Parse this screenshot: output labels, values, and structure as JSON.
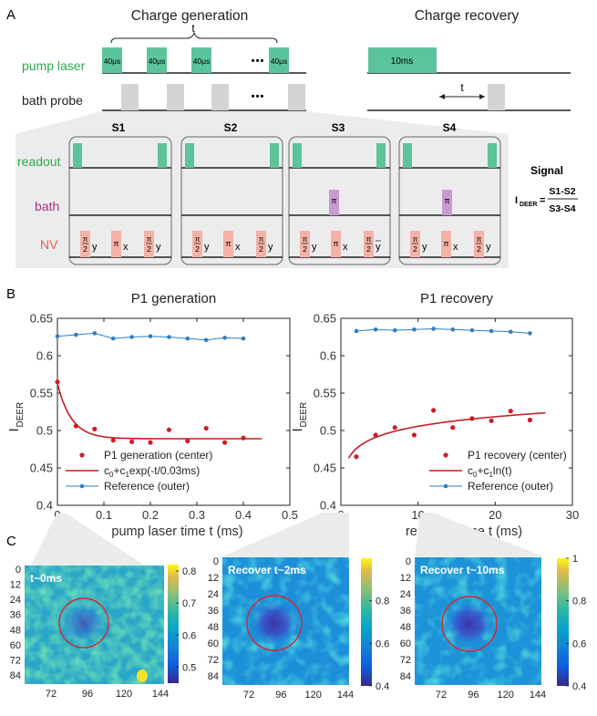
{
  "panel_labels": {
    "a": "A",
    "b": "B",
    "c": "C"
  },
  "section_a": {
    "charge_generation_title": "Charge generation",
    "charge_recovery_title": "Charge recovery",
    "t_label": "t",
    "pump_laser_label": "pump laser",
    "bath_probe_label": "bath probe",
    "pulse_label": "40μs",
    "recovery_pulse_label": "10ms",
    "ellipsis": "• • •",
    "rows": {
      "readout": "readout",
      "bath": "bath",
      "nv": "NV"
    },
    "sequences": [
      "S1",
      "S2",
      "S3",
      "S4"
    ],
    "pi": "π",
    "pi_half": "π",
    "denominator_two": "2",
    "axis_y": "y",
    "axis_x": "x",
    "axis_ybar": "y",
    "signal_title": "Signal",
    "signal_lhs": "I",
    "signal_sub": "DEER",
    "signal_eq": "=",
    "signal_num": "S1-S2",
    "signal_den": "S3-S4",
    "colors": {
      "green": "#5cc49a",
      "pink": "#f4b3a6",
      "purple": "#b58bbd",
      "gray": "#d4d4d4",
      "bath_text": "#a0357e",
      "nv_text": "#e8604c",
      "label_green": "#2fa84f"
    }
  },
  "chart_data": [
    {
      "type": "scatter",
      "title": "P1 generation",
      "xlabel": "pump laser time t (ms)",
      "ylabel": "I",
      "ylabel_sub": "DEER",
      "xlim": [
        0,
        0.5
      ],
      "ylim": [
        0.4,
        0.65
      ],
      "xticks": [
        "0",
        "0.1",
        "0.2",
        "0.3",
        "0.4",
        "0.5"
      ],
      "yticks": [
        "0.4",
        "0.45",
        "0.5",
        "0.55",
        "0.6",
        "0.65"
      ],
      "series": [
        {
          "name": "P1 generation (center)",
          "kind": "points",
          "color": "#cc1f26",
          "x": [
            0.0,
            0.04,
            0.08,
            0.12,
            0.16,
            0.2,
            0.24,
            0.28,
            0.32,
            0.36,
            0.4
          ],
          "y": [
            0.565,
            0.506,
            0.502,
            0.487,
            0.485,
            0.484,
            0.501,
            0.486,
            0.503,
            0.484,
            0.49
          ]
        },
        {
          "name": "c0+c1exp(-t/0.03ms)",
          "kind": "fit",
          "color": "#c41d24",
          "model": "exp",
          "c0": 0.489,
          "c1": 0.074,
          "tau": 0.03,
          "range": [
            0,
            0.44
          ]
        },
        {
          "name": "Reference (outer)",
          "kind": "linepoints",
          "color": "#2f7fc1",
          "x": [
            0.0,
            0.04,
            0.08,
            0.12,
            0.16,
            0.2,
            0.24,
            0.28,
            0.32,
            0.36,
            0.4
          ],
          "y": [
            0.626,
            0.628,
            0.63,
            0.623,
            0.625,
            0.626,
            0.625,
            0.623,
            0.621,
            0.624,
            0.623
          ]
        }
      ],
      "legend": [
        {
          "pre": "P1 generation (center)"
        },
        {
          "pre": "c",
          "s1": "0",
          "mid": "+c",
          "s2": "1",
          "post": "exp(-t/0.03ms)"
        },
        {
          "pre": "Reference (outer)"
        }
      ]
    },
    {
      "type": "scatter",
      "title": "P1 recovery",
      "xlabel": "recovery time t (ms)",
      "ylabel": "I",
      "ylabel_sub": "DEER",
      "xlim": [
        0,
        30
      ],
      "ylim": [
        0.4,
        0.65
      ],
      "xticks": [
        "0",
        "10",
        "20",
        "30"
      ],
      "yticks": [
        "0.4",
        "0.45",
        "0.5",
        "0.55",
        "0.6",
        "0.65"
      ],
      "series": [
        {
          "name": "P1 recovery (center)",
          "kind": "points",
          "color": "#cc1f26",
          "x": [
            2,
            4.5,
            7,
            9.5,
            12,
            14.5,
            17,
            19.5,
            22,
            24.5
          ],
          "y": [
            0.465,
            0.494,
            0.504,
            0.494,
            0.527,
            0.504,
            0.516,
            0.513,
            0.526,
            0.514
          ]
        },
        {
          "name": "c0+c1ln(t)",
          "kind": "fit",
          "color": "#c41d24",
          "model": "log",
          "c0": 0.463,
          "c1": 0.0185,
          "range": [
            1.0,
            26.5
          ]
        },
        {
          "name": "Reference (outer)",
          "kind": "linepoints",
          "color": "#2f7fc1",
          "x": [
            2,
            4.5,
            7,
            9.5,
            12,
            14.5,
            17,
            19.5,
            22,
            24.5
          ],
          "y": [
            0.633,
            0.635,
            0.634,
            0.635,
            0.636,
            0.635,
            0.634,
            0.633,
            0.632,
            0.63
          ]
        }
      ],
      "legend": [
        {
          "pre": "P1 recovery (center)"
        },
        {
          "pre": "c",
          "s1": "0",
          "mid": "+c",
          "s2": "1",
          "post": "ln(t)"
        },
        {
          "pre": "Reference (outer)"
        }
      ]
    },
    {
      "type": "heatmap",
      "title": "t~0ms",
      "yticks": [
        "0",
        "12",
        "24",
        "36",
        "48",
        "60",
        "72",
        "84"
      ],
      "xticks": [
        "72",
        "96",
        "120",
        "144"
      ],
      "colorbar_ticks": [
        "0.8",
        "0.7",
        "0.6",
        "0.5"
      ],
      "colorbar_range": [
        0.45,
        0.82
      ]
    },
    {
      "type": "heatmap",
      "title": "Recover t~2ms",
      "yticks": [
        "0",
        "12",
        "24",
        "36",
        "48",
        "60",
        "72",
        "84"
      ],
      "xticks": [
        "72",
        "96",
        "120",
        "144"
      ],
      "colorbar_ticks": [
        "0.8",
        "0.6",
        "0.4"
      ],
      "colorbar_range": [
        0.4,
        1.0
      ]
    },
    {
      "type": "heatmap",
      "title": "Recover t~10ms",
      "yticks": [
        "0",
        "12",
        "24",
        "36",
        "48",
        "60",
        "72",
        "84"
      ],
      "xticks": [
        "72",
        "96",
        "120",
        "144"
      ],
      "colorbar_ticks": [
        "1",
        "0.8",
        "0.6",
        "0.4"
      ],
      "colorbar_range": [
        0.4,
        1.0
      ]
    }
  ]
}
